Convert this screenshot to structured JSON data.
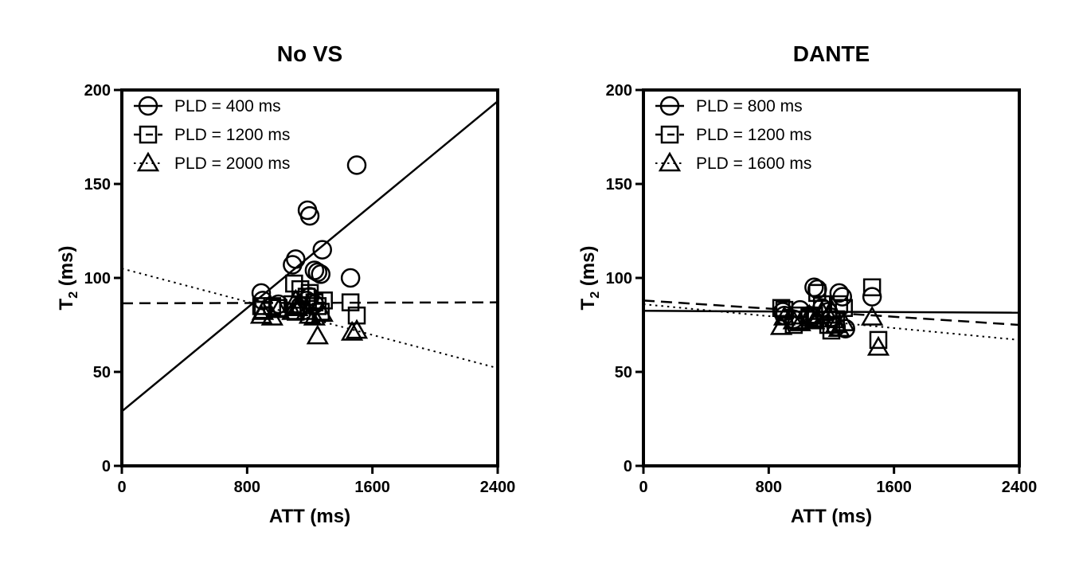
{
  "chart_data": [
    {
      "type": "scatter",
      "title": "No VS",
      "xlabel": "ATT (ms)",
      "ylabel": "T",
      "ylabel_subscript": "2",
      "ylabel_unit": " (ms)",
      "xlim": [
        0,
        2400
      ],
      "ylim": [
        0,
        200
      ],
      "xticks": [
        0,
        800,
        1600,
        2400
      ],
      "xtick_labels": [
        "0",
        "800",
        "1600",
        "2400"
      ],
      "yticks": [
        0,
        50,
        100,
        150,
        200
      ],
      "ytick_labels": [
        "0",
        "50",
        "100",
        "150",
        "200"
      ],
      "legend_position": "top-left",
      "series": [
        {
          "name": "PLD = 400 ms",
          "marker": "circle",
          "line": "solid",
          "fit": {
            "x": [
              0,
              2400
            ],
            "y": [
              29,
              194
            ]
          },
          "points": [
            [
              1500,
              160
            ],
            [
              1185,
              136
            ],
            [
              1200,
              133
            ],
            [
              1280,
              115
            ],
            [
              1090,
              107
            ],
            [
              1110,
              110
            ],
            [
              1230,
              104
            ],
            [
              1250,
              103
            ],
            [
              1270,
              102
            ],
            [
              1460,
              100
            ],
            [
              890,
              92
            ],
            [
              900,
              88
            ],
            [
              1000,
              86
            ],
            [
              1140,
              85
            ],
            [
              1200,
              90
            ],
            [
              1180,
              88
            ],
            [
              1230,
              86
            ]
          ]
        },
        {
          "name": "PLD = 1200 ms",
          "marker": "square",
          "line": "dashed",
          "fit": {
            "x": [
              0,
              2400
            ],
            "y": [
              86.5,
              87
            ]
          },
          "points": [
            [
              890,
              85
            ],
            [
              900,
              83
            ],
            [
              1000,
              84
            ],
            [
              1090,
              86
            ],
            [
              1100,
              97
            ],
            [
              1140,
              94
            ],
            [
              1180,
              90
            ],
            [
              1200,
              92
            ],
            [
              1230,
              87
            ],
            [
              1250,
              85
            ],
            [
              1270,
              82
            ],
            [
              1290,
              88
            ],
            [
              1460,
              87
            ],
            [
              1500,
              80
            ],
            [
              960,
              85
            ],
            [
              1110,
              82
            ]
          ]
        },
        {
          "name": "PLD = 2000 ms",
          "marker": "triangle",
          "line": "dotted",
          "fit": {
            "x": [
              0,
              2400
            ],
            "y": [
              105,
              52
            ]
          },
          "points": [
            [
              890,
              80
            ],
            [
              900,
              82
            ],
            [
              1000,
              83
            ],
            [
              1090,
              82
            ],
            [
              1110,
              88
            ],
            [
              1140,
              85
            ],
            [
              1180,
              82
            ],
            [
              1200,
              80
            ],
            [
              1230,
              79
            ],
            [
              1250,
              69
            ],
            [
              1280,
              81
            ],
            [
              1470,
              71
            ],
            [
              1500,
              72
            ],
            [
              960,
              79
            ],
            [
              1120,
              84
            ]
          ]
        }
      ]
    },
    {
      "type": "scatter",
      "title": "DANTE",
      "xlabel": "ATT (ms)",
      "ylabel": "T",
      "ylabel_subscript": "2",
      "ylabel_unit": " (ms)",
      "xlim": [
        0,
        2400
      ],
      "ylim": [
        0,
        200
      ],
      "xticks": [
        0,
        800,
        1600,
        2400
      ],
      "xtick_labels": [
        "0",
        "800",
        "1600",
        "2400"
      ],
      "yticks": [
        0,
        50,
        100,
        150,
        200
      ],
      "ytick_labels": [
        "0",
        "50",
        "100",
        "150",
        "200"
      ],
      "legend_position": "top-left",
      "series": [
        {
          "name": "PLD = 800 ms",
          "marker": "circle",
          "line": "solid",
          "fit": {
            "x": [
              0,
              2400
            ],
            "y": [
              82.5,
              81.5
            ]
          },
          "points": [
            [
              890,
              82
            ],
            [
              900,
              80
            ],
            [
              1000,
              83
            ],
            [
              1090,
              95
            ],
            [
              1110,
              94
            ],
            [
              1140,
              84
            ],
            [
              1180,
              82
            ],
            [
              1200,
              79
            ],
            [
              1230,
              74
            ],
            [
              1250,
              92
            ],
            [
              1270,
              90
            ],
            [
              1290,
              73
            ],
            [
              1460,
              90
            ],
            [
              960,
              78
            ],
            [
              1060,
              80
            ]
          ]
        },
        {
          "name": "PLD = 1200 ms",
          "marker": "square",
          "line": "dashed",
          "fit": {
            "x": [
              0,
              2400
            ],
            "y": [
              88,
              75
            ]
          },
          "points": [
            [
              880,
              84
            ],
            [
              900,
              83
            ],
            [
              1000,
              80
            ],
            [
              1090,
              80
            ],
            [
              1110,
              92
            ],
            [
              1140,
              86
            ],
            [
              1180,
              75
            ],
            [
              1200,
              72
            ],
            [
              1230,
              78
            ],
            [
              1250,
              86
            ],
            [
              1280,
              84
            ],
            [
              1460,
              95
            ],
            [
              1500,
              67
            ],
            [
              960,
              75
            ],
            [
              1060,
              79
            ]
          ]
        },
        {
          "name": "PLD = 1600 ms",
          "marker": "triangle",
          "line": "dotted",
          "fit": {
            "x": [
              0,
              2400
            ],
            "y": [
              86,
              67
            ]
          },
          "points": [
            [
              880,
              74
            ],
            [
              900,
              79
            ],
            [
              1000,
              76
            ],
            [
              1090,
              77
            ],
            [
              1110,
              78
            ],
            [
              1140,
              82
            ],
            [
              1180,
              80
            ],
            [
              1200,
              83
            ],
            [
              1230,
              75
            ],
            [
              1250,
              73
            ],
            [
              1280,
              76
            ],
            [
              1460,
              79
            ],
            [
              1500,
              63
            ],
            [
              960,
              77
            ],
            [
              1060,
              80
            ]
          ]
        }
      ]
    }
  ]
}
